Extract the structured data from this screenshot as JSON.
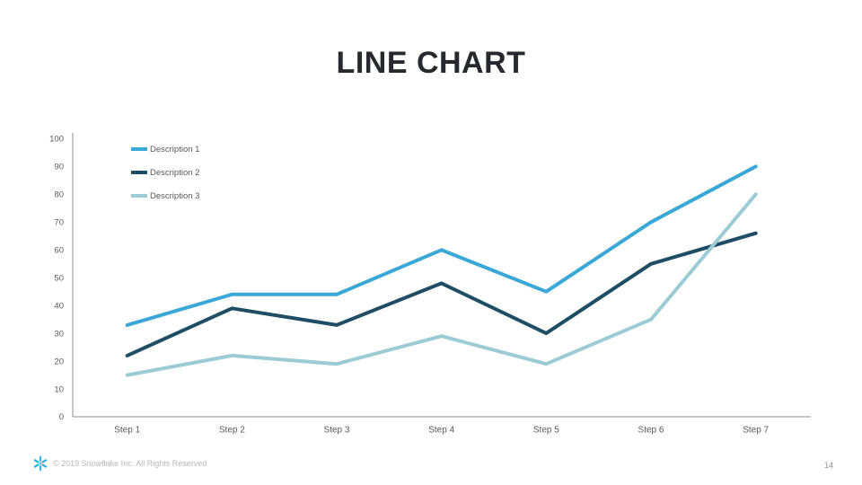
{
  "slide": {
    "title": "LINE CHART",
    "page_number": "14",
    "footer": {
      "copyright": "© 2019 Snowflake Inc. All Rights Reserved"
    }
  },
  "colors": {
    "title_text": "#26292d",
    "axis_line": "#8c8c8c",
    "tick_label": "#595959",
    "legend_label": "#595959",
    "footer_text": "#b2b8bc",
    "page_number": "#8f9397",
    "logo_blue": "#32b4e1",
    "series1": "#3aa8d6",
    "series2": "#1d4e63",
    "series3": "#9bccd4"
  },
  "chart_data": {
    "type": "line",
    "title": "LINE CHART",
    "categories": [
      "Step 1",
      "Step 2",
      "Step 3",
      "Step 4",
      "Step 5",
      "Step 6",
      "Step 7"
    ],
    "series": [
      {
        "name": "Description 1",
        "color": "#3aa8d6",
        "values": [
          33,
          44,
          44,
          60,
          45,
          70,
          90
        ]
      },
      {
        "name": "Description 2",
        "color": "#1d4e63",
        "values": [
          22,
          39,
          33,
          48,
          30,
          55,
          66
        ]
      },
      {
        "name": "Description 3",
        "color": "#9bccd4",
        "values": [
          15,
          22,
          19,
          29,
          19,
          35,
          80
        ]
      }
    ],
    "xlabel": "",
    "ylabel": "",
    "ylim": [
      0,
      100
    ],
    "ytick_step": 10,
    "yticks": [
      0,
      10,
      20,
      30,
      40,
      50,
      60,
      70,
      80,
      90,
      100
    ],
    "grid": false,
    "legend_position": "inside-top-left"
  }
}
